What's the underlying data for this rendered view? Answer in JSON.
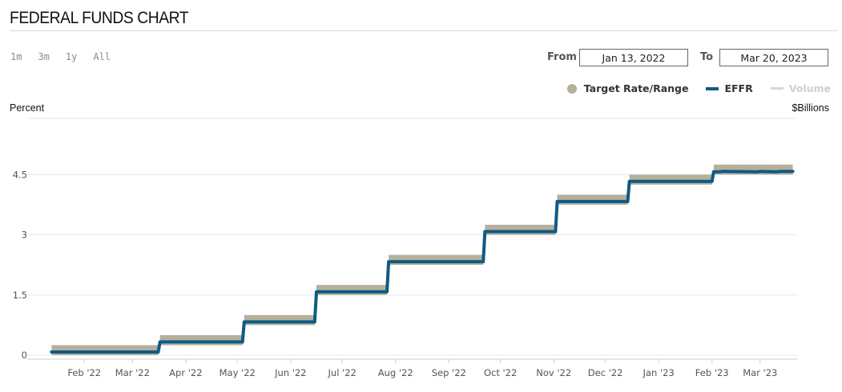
{
  "title": "FEDERAL FUNDS CHART",
  "range_buttons": [
    "1m",
    "3m",
    "1y",
    "All"
  ],
  "date_range": {
    "from_label": "From",
    "from_value": "Jan 13, 2022",
    "to_label": "To",
    "to_value": "Mar 20, 2023"
  },
  "legend": {
    "target": "Target Rate/Range",
    "effr": "EFFR",
    "volume": "Volume"
  },
  "axes": {
    "left_title": "Percent",
    "right_title": "$Billions"
  },
  "colors": {
    "target_band": "#b5b09b",
    "effr_line": "#0e5a85",
    "volume_line": "#d6d6d6",
    "grid": "#e3e8ef"
  },
  "chart_data": {
    "type": "line",
    "x_range": [
      "2022-01-13",
      "2023-03-20"
    ],
    "ylim": [
      0,
      6
    ],
    "y_ticks": [
      "0",
      "1.5",
      "3",
      "4.5"
    ],
    "x_ticks": [
      {
        "date": "2022-02-01",
        "label": "Feb '22"
      },
      {
        "date": "2022-03-01",
        "label": "Mar '22"
      },
      {
        "date": "2022-04-01",
        "label": "Apr '22"
      },
      {
        "date": "2022-05-01",
        "label": "May '22"
      },
      {
        "date": "2022-06-01",
        "label": "Jun '22"
      },
      {
        "date": "2022-07-01",
        "label": "Jul '22"
      },
      {
        "date": "2022-08-01",
        "label": "Aug '22"
      },
      {
        "date": "2022-09-01",
        "label": "Sep '22"
      },
      {
        "date": "2022-10-01",
        "label": "Oct '22"
      },
      {
        "date": "2022-11-01",
        "label": "Nov '22"
      },
      {
        "date": "2022-12-01",
        "label": "Dec '22"
      },
      {
        "date": "2023-01-01",
        "label": "Jan '23"
      },
      {
        "date": "2023-02-01",
        "label": "Feb '23"
      },
      {
        "date": "2023-03-01",
        "label": "Mar '23"
      }
    ],
    "target_range": [
      {
        "start": "2022-01-13",
        "end": "2022-03-16",
        "lower": 0.0,
        "upper": 0.25
      },
      {
        "start": "2022-03-17",
        "end": "2022-05-04",
        "lower": 0.25,
        "upper": 0.5
      },
      {
        "start": "2022-05-05",
        "end": "2022-06-15",
        "lower": 0.75,
        "upper": 1.0
      },
      {
        "start": "2022-06-16",
        "end": "2022-07-27",
        "lower": 1.5,
        "upper": 1.75
      },
      {
        "start": "2022-07-28",
        "end": "2022-09-21",
        "lower": 2.25,
        "upper": 2.5
      },
      {
        "start": "2022-09-22",
        "end": "2022-11-02",
        "lower": 3.0,
        "upper": 3.25
      },
      {
        "start": "2022-11-03",
        "end": "2022-12-14",
        "lower": 3.75,
        "upper": 4.0
      },
      {
        "start": "2022-12-15",
        "end": "2023-02-01",
        "lower": 4.25,
        "upper": 4.5
      },
      {
        "start": "2023-02-02",
        "end": "2023-03-20",
        "lower": 4.5,
        "upper": 4.75
      }
    ],
    "series": [
      {
        "name": "EFFR",
        "points": [
          {
            "date": "2022-01-13",
            "value": 0.08
          },
          {
            "date": "2022-03-16",
            "value": 0.08
          },
          {
            "date": "2022-03-17",
            "value": 0.33
          },
          {
            "date": "2022-05-04",
            "value": 0.33
          },
          {
            "date": "2022-05-05",
            "value": 0.83
          },
          {
            "date": "2022-06-15",
            "value": 0.83
          },
          {
            "date": "2022-06-16",
            "value": 1.58
          },
          {
            "date": "2022-07-27",
            "value": 1.58
          },
          {
            "date": "2022-07-28",
            "value": 2.33
          },
          {
            "date": "2022-09-21",
            "value": 2.33
          },
          {
            "date": "2022-09-22",
            "value": 3.08
          },
          {
            "date": "2022-11-02",
            "value": 3.08
          },
          {
            "date": "2022-11-03",
            "value": 3.83
          },
          {
            "date": "2022-12-14",
            "value": 3.83
          },
          {
            "date": "2022-12-15",
            "value": 4.33
          },
          {
            "date": "2023-02-01",
            "value": 4.33
          },
          {
            "date": "2023-02-02",
            "value": 4.57
          },
          {
            "date": "2023-02-06",
            "value": 4.57
          },
          {
            "date": "2023-02-07",
            "value": 4.58
          },
          {
            "date": "2023-02-28",
            "value": 4.57
          },
          {
            "date": "2023-03-01",
            "value": 4.58
          },
          {
            "date": "2023-03-10",
            "value": 4.57
          },
          {
            "date": "2023-03-13",
            "value": 4.58
          },
          {
            "date": "2023-03-20",
            "value": 4.58
          }
        ]
      }
    ]
  }
}
